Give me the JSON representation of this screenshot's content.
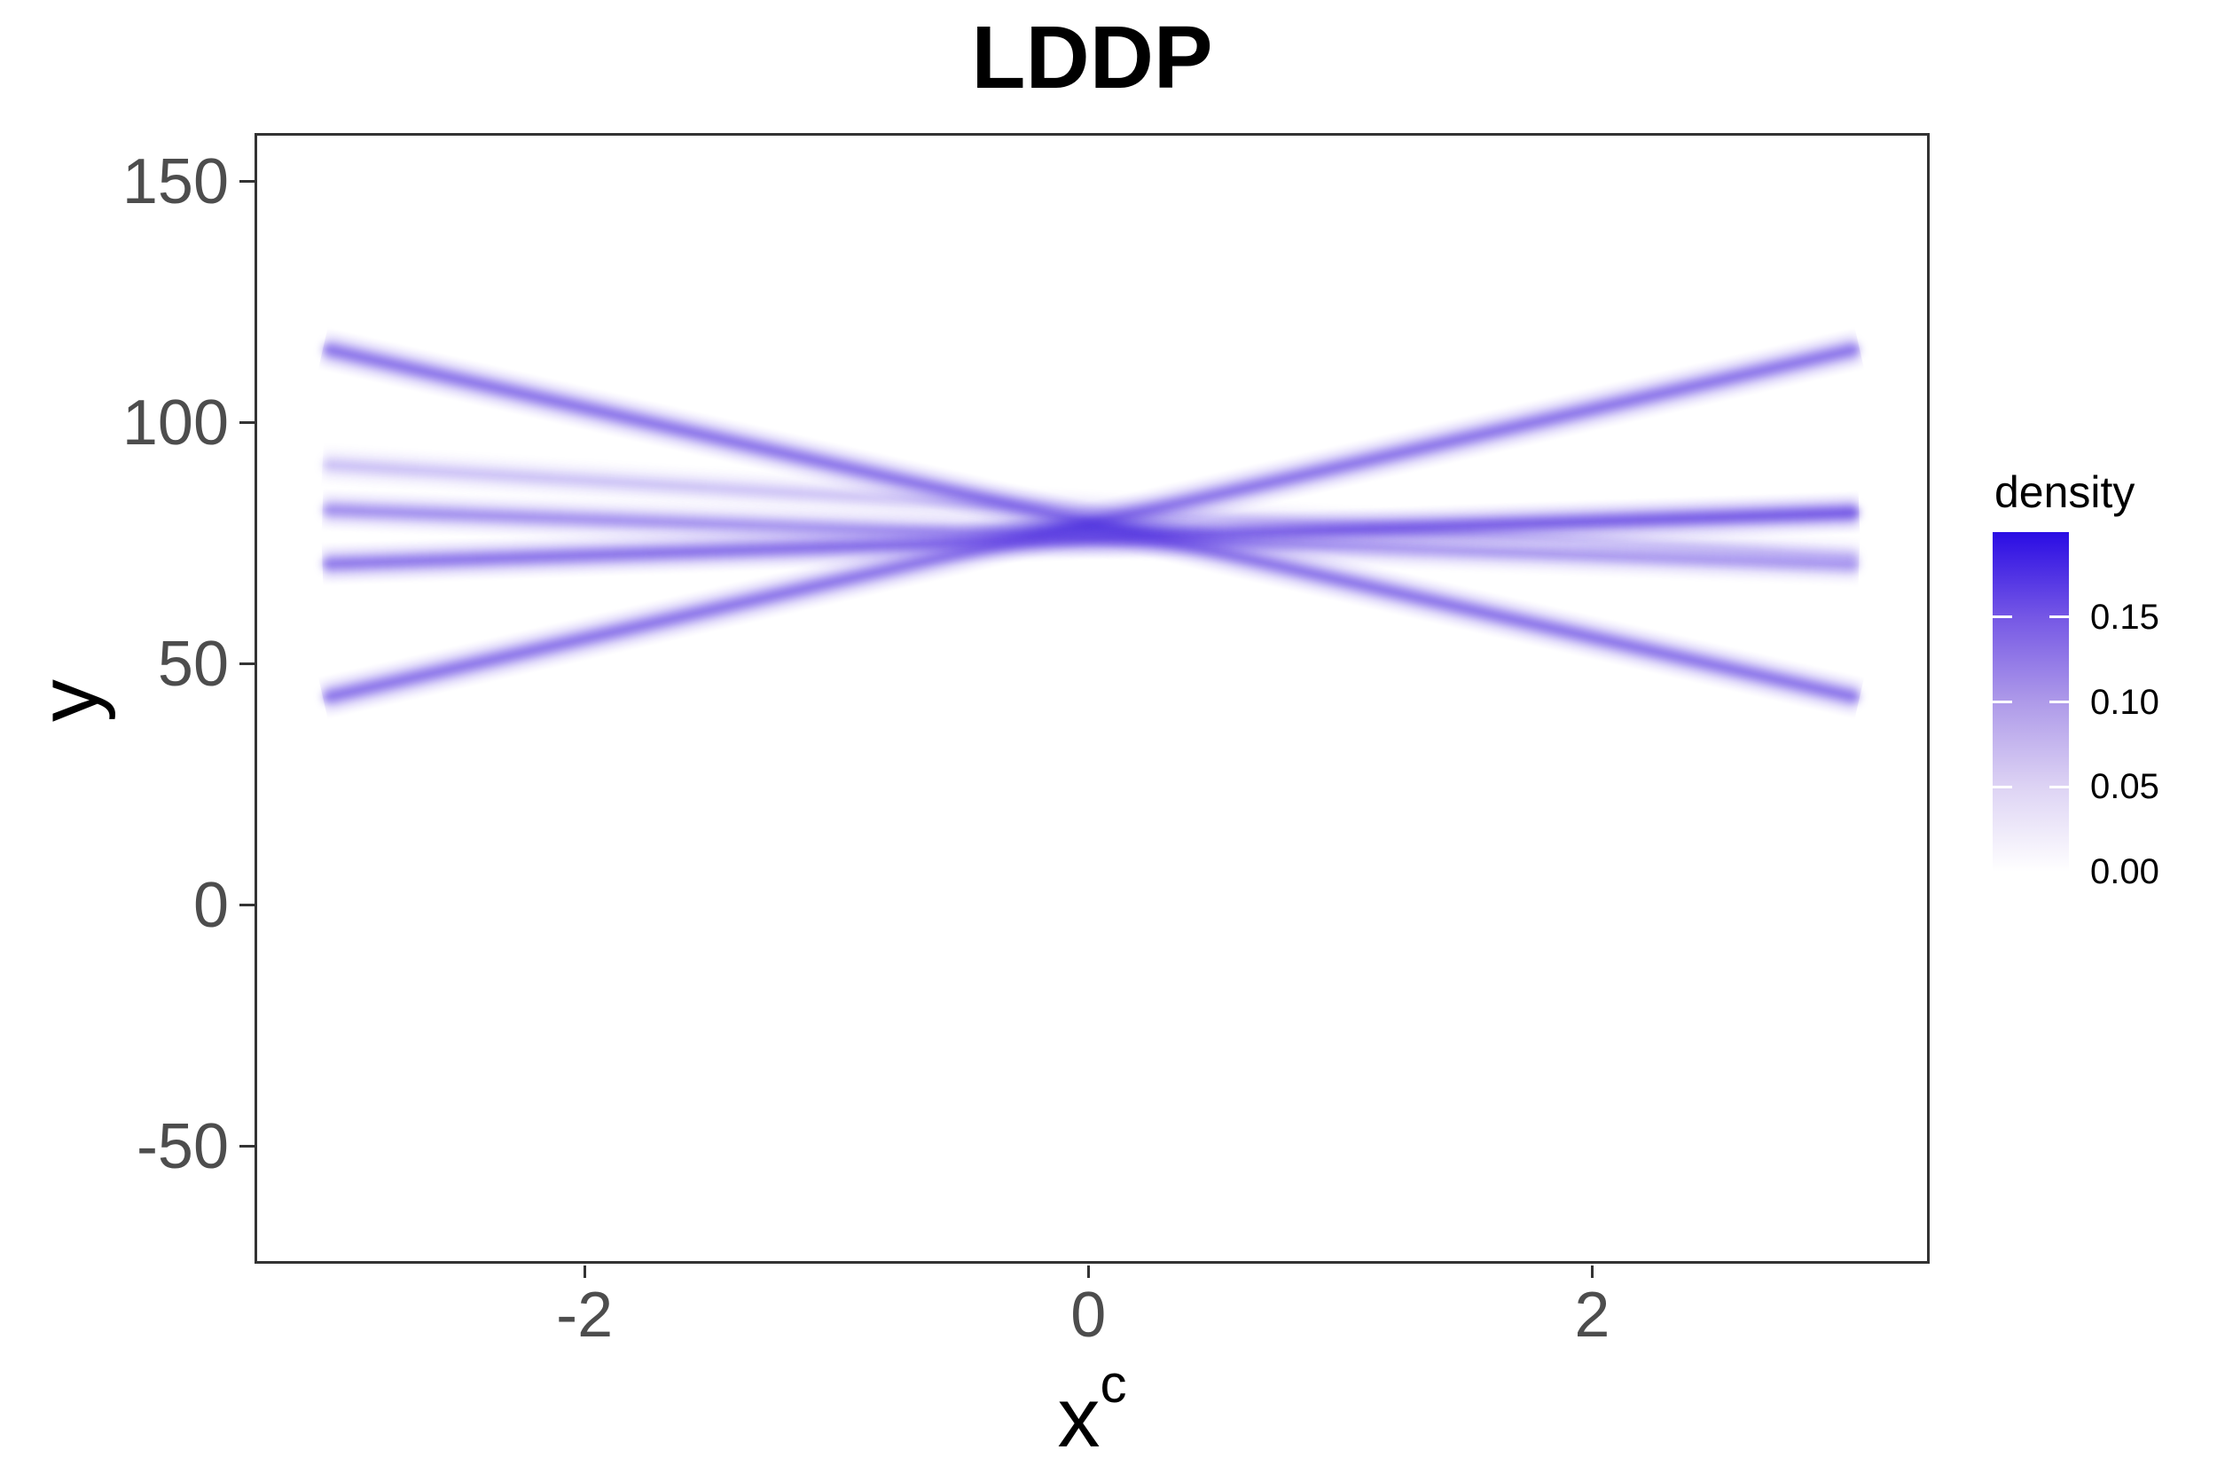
{
  "title": "LDDP",
  "axes": {
    "x": {
      "title_base": "x",
      "title_sup": "c",
      "tick_labels": [
        "-2",
        "0",
        "2"
      ],
      "tick_values": [
        -2,
        0,
        2
      ]
    },
    "y": {
      "title": "y",
      "tick_labels": [
        "150",
        "100",
        "50",
        "0",
        "-50"
      ],
      "tick_values": [
        150,
        100,
        50,
        0,
        -50
      ]
    }
  },
  "legend": {
    "title": "density",
    "labels": [
      "0.15",
      "0.10",
      "0.05",
      "0.00"
    ],
    "label_values": [
      0.15,
      0.1,
      0.05,
      0.0
    ],
    "max_value": 0.2,
    "gradient_bottom_to_top": [
      "#FFFFFF",
      "#DDD3F4",
      "#AE9AE9",
      "#7557E5",
      "#2A0CE4"
    ]
  },
  "colors": {
    "panel_border": "#333333",
    "tick_text": "#4D4D4D",
    "line_core": "84,52,222",
    "line_halo": "124,95,235",
    "hotspot": "43,16,216"
  },
  "chart_data": {
    "type": "heatmap",
    "subtype": "conditional-density-line-mixture",
    "title": "LDDP",
    "xlabel": "x^c",
    "ylabel": "y",
    "x_domain": [
      -3.31,
      3.34
    ],
    "y_domain": [
      -74.3,
      160.1
    ],
    "x_ticks": [
      -2,
      0,
      2
    ],
    "y_ticks": [
      150,
      100,
      50,
      0,
      -50
    ],
    "grid": false,
    "legend_position": "right",
    "density_scale": {
      "min": 0.0,
      "max": 0.2,
      "low_color": "#FFFFFF",
      "high_color": "#2A0CE4"
    },
    "lines": [
      {
        "x1": -3.05,
        "y1": 116.0,
        "x2": 3.05,
        "y2": 43.5,
        "strength": 0.52
      },
      {
        "x1": -3.05,
        "y1": 43.5,
        "x2": 3.05,
        "y2": 116.0,
        "strength": 0.52
      },
      {
        "x1": -3.05,
        "y1": 71.3,
        "x2": 3.05,
        "y2": 82.0,
        "strength": 0.5,
        "strength2": 0.68
      },
      {
        "x1": -3.05,
        "y1": 82.5,
        "x2": 3.05,
        "y2": 71.0,
        "strength": 0.4,
        "strength2": 0.33
      },
      {
        "x1": -3.05,
        "y1": 92.0,
        "x2": 3.05,
        "y2": 72.8,
        "strength": 0.2,
        "strength2": 0.16
      }
    ],
    "hotspot": {
      "x": 0.0,
      "y": 78.8,
      "strength": 0.5
    }
  }
}
